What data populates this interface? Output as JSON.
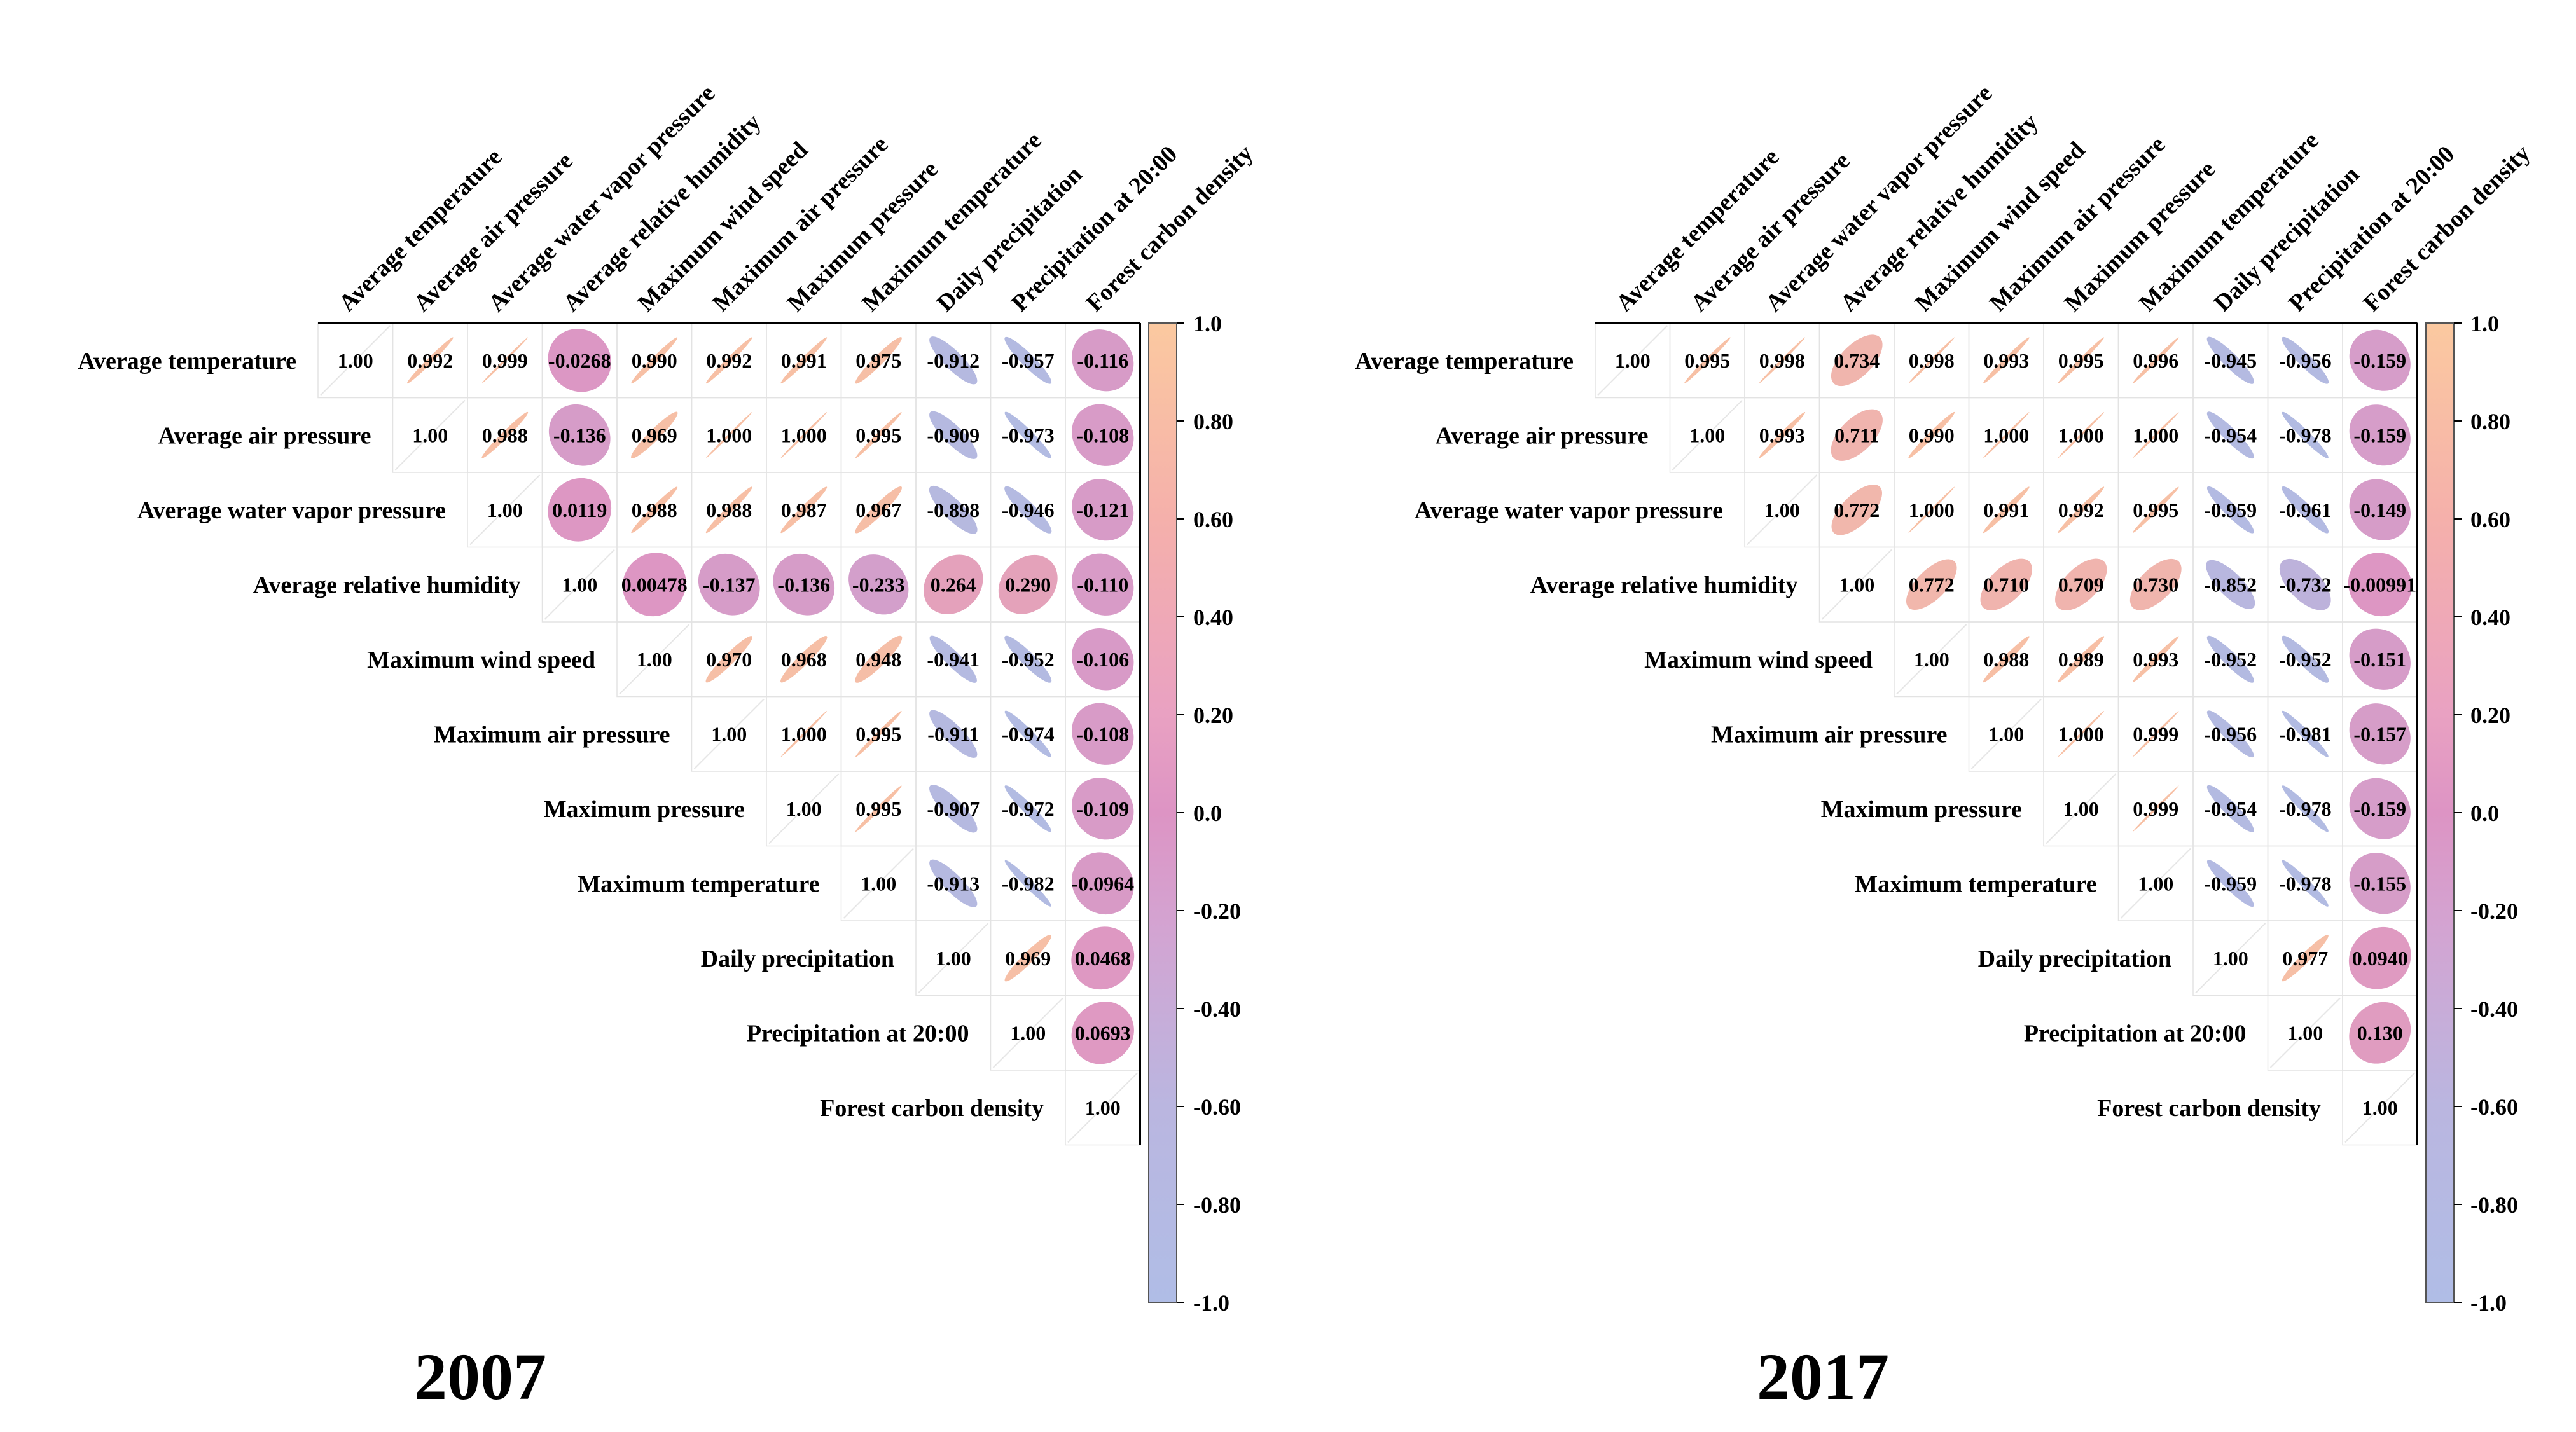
{
  "chart_data": [
    {
      "type": "heatmap",
      "subtype": "correlation-matrix-upper-triangle",
      "title": "2007",
      "variables": [
        "Average temperature",
        "Average air pressure",
        "Average water vapor pressure",
        "Average relative humidity",
        "Maximum wind speed",
        "Maximum air pressure",
        "Maximum pressure",
        "Maximum temperature",
        "Daily precipitation",
        "Precipitation at 20:00",
        "Forest carbon density"
      ],
      "values": [
        [
          "1.00",
          "0.992",
          "0.999",
          "-0.0268",
          "0.990",
          "0.992",
          "0.991",
          "0.975",
          "-0.912",
          "-0.957",
          "-0.116"
        ],
        [
          "",
          "1.00",
          "0.988",
          "-0.136",
          "0.969",
          "1.000",
          "1.000",
          "0.995",
          "-0.909",
          "-0.973",
          "-0.108"
        ],
        [
          "",
          "",
          "1.00",
          "0.0119",
          "0.988",
          "0.988",
          "0.987",
          "0.967",
          "-0.898",
          "-0.946",
          "-0.121"
        ],
        [
          "",
          "",
          "",
          "1.00",
          "0.00478",
          "-0.137",
          "-0.136",
          "-0.233",
          "0.264",
          "0.290",
          "-0.110"
        ],
        [
          "",
          "",
          "",
          "",
          "1.00",
          "0.970",
          "0.968",
          "0.948",
          "-0.941",
          "-0.952",
          "-0.106"
        ],
        [
          "",
          "",
          "",
          "",
          "",
          "1.00",
          "1.000",
          "0.995",
          "-0.911",
          "-0.974",
          "-0.108"
        ],
        [
          "",
          "",
          "",
          "",
          "",
          "",
          "1.00",
          "0.995",
          "-0.907",
          "-0.972",
          "-0.109"
        ],
        [
          "",
          "",
          "",
          "",
          "",
          "",
          "",
          "1.00",
          "-0.913",
          "-0.982",
          "-0.0964"
        ],
        [
          "",
          "",
          "",
          "",
          "",
          "",
          "",
          "",
          "1.00",
          "0.969",
          "0.0468"
        ],
        [
          "",
          "",
          "",
          "",
          "",
          "",
          "",
          "",
          "",
          "1.00",
          "0.0693"
        ],
        [
          "",
          "",
          "",
          "",
          "",
          "",
          "",
          "",
          "",
          "",
          "1.00"
        ]
      ],
      "colorbar": {
        "range": [
          -1.0,
          1.0
        ],
        "ticks": [
          "1.0",
          "0.80",
          "0.60",
          "0.40",
          "0.20",
          "0.0",
          "-0.20",
          "-0.40",
          "-0.60",
          "-0.80",
          "-1.0"
        ]
      }
    },
    {
      "type": "heatmap",
      "subtype": "correlation-matrix-upper-triangle",
      "title": "2017",
      "variables": [
        "Average temperature",
        "Average air pressure",
        "Average water vapor pressure",
        "Average relative humidity",
        "Maximum wind speed",
        "Maximum air pressure",
        "Maximum pressure",
        "Maximum temperature",
        "Daily precipitation",
        "Precipitation at 20:00",
        "Forest carbon density"
      ],
      "values": [
        [
          "1.00",
          "0.995",
          "0.998",
          "0.734",
          "0.998",
          "0.993",
          "0.995",
          "0.996",
          "-0.945",
          "-0.956",
          "-0.159"
        ],
        [
          "",
          "1.00",
          "0.993",
          "0.711",
          "0.990",
          "1.000",
          "1.000",
          "1.000",
          "-0.954",
          "-0.978",
          "-0.159"
        ],
        [
          "",
          "",
          "1.00",
          "0.772",
          "1.000",
          "0.991",
          "0.992",
          "0.995",
          "-0.959",
          "-0.961",
          "-0.149"
        ],
        [
          "",
          "",
          "",
          "1.00",
          "0.772",
          "0.710",
          "0.709",
          "0.730",
          "-0.852",
          "-0.732",
          "-0.00991"
        ],
        [
          "",
          "",
          "",
          "",
          "1.00",
          "0.988",
          "0.989",
          "0.993",
          "-0.952",
          "-0.952",
          "-0.151"
        ],
        [
          "",
          "",
          "",
          "",
          "",
          "1.00",
          "1.000",
          "0.999",
          "-0.956",
          "-0.981",
          "-0.157"
        ],
        [
          "",
          "",
          "",
          "",
          "",
          "",
          "1.00",
          "0.999",
          "-0.954",
          "-0.978",
          "-0.159"
        ],
        [
          "",
          "",
          "",
          "",
          "",
          "",
          "",
          "1.00",
          "-0.959",
          "-0.978",
          "-0.155"
        ],
        [
          "",
          "",
          "",
          "",
          "",
          "",
          "",
          "",
          "1.00",
          "0.977",
          "0.0940"
        ],
        [
          "",
          "",
          "",
          "",
          "",
          "",
          "",
          "",
          "",
          "1.00",
          "0.130"
        ],
        [
          "",
          "",
          "",
          "",
          "",
          "",
          "",
          "",
          "",
          "",
          "1.00"
        ]
      ],
      "colorbar": {
        "range": [
          -1.0,
          1.0
        ],
        "ticks": [
          "1.0",
          "0.80",
          "0.60",
          "0.40",
          "0.20",
          "0.0",
          "-0.20",
          "-0.40",
          "-0.60",
          "-0.80",
          "-1.0"
        ]
      }
    }
  ],
  "colors": {
    "positive": "#f6b99b",
    "zero": "#d98bbd",
    "negative": "#a9b5e0",
    "grid": "#e3e3e3",
    "axis": "#000000"
  }
}
